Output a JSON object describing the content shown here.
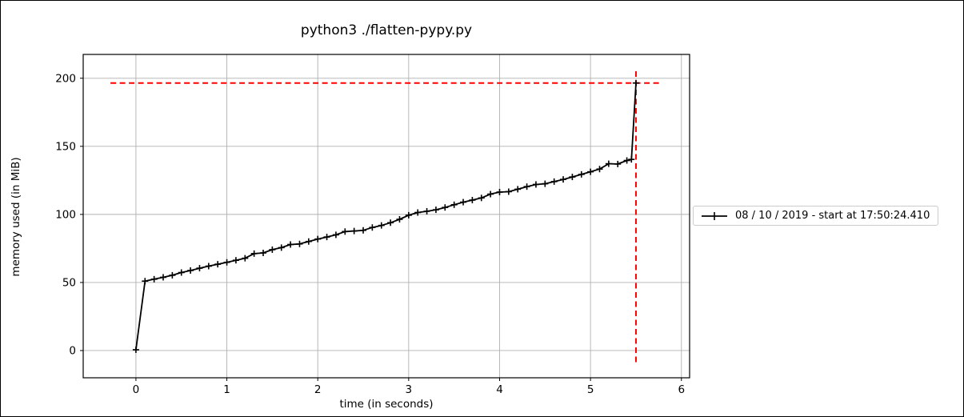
{
  "chart_data": {
    "type": "line",
    "title": "python3 ./flatten-pypy.py",
    "xlabel": "time (in seconds)",
    "ylabel": "memory used (in MiB)",
    "xlim": [
      -0.58,
      6.09
    ],
    "ylim": [
      -20,
      217.5
    ],
    "x_ticks": [
      0,
      1,
      2,
      3,
      4,
      5,
      6
    ],
    "y_ticks": [
      0,
      50,
      100,
      150,
      200
    ],
    "grid": true,
    "legend": {
      "label": "08 / 10 / 2019 - start at 17:50:24.410",
      "position": "right-of-axes"
    },
    "series": [
      {
        "name": "08 / 10 / 2019 - start at 17:50:24.410",
        "color": "#000000",
        "marker": "+",
        "x": [
          0,
          0.1,
          0.2,
          0.3,
          0.4,
          0.5,
          0.6,
          0.7,
          0.8,
          0.9,
          1.0,
          1.1,
          1.2,
          1.3,
          1.4,
          1.5,
          1.6,
          1.7,
          1.8,
          1.9,
          2.0,
          2.1,
          2.2,
          2.3,
          2.4,
          2.5,
          2.6,
          2.7,
          2.8,
          2.9,
          3.0,
          3.1,
          3.2,
          3.3,
          3.4,
          3.5,
          3.6,
          3.7,
          3.8,
          3.9,
          4.0,
          4.1,
          4.2,
          4.3,
          4.4,
          4.5,
          4.6,
          4.7,
          4.8,
          4.9,
          5.0,
          5.1,
          5.2,
          5.3,
          5.4,
          5.45,
          5.5
        ],
        "y": [
          0.6,
          51.0,
          52.4,
          53.8,
          55.3,
          57.3,
          58.8,
          60.5,
          62.0,
          63.4,
          64.8,
          66.3,
          67.8,
          71.2,
          71.7,
          74.1,
          75.6,
          77.9,
          78.3,
          80.1,
          81.9,
          83.4,
          85.0,
          87.4,
          87.8,
          88.3,
          90.4,
          91.9,
          93.9,
          96.4,
          99.4,
          101.4,
          102.3,
          103.4,
          105.1,
          107.1,
          109.0,
          110.5,
          112.1,
          114.9,
          116.4,
          116.7,
          118.5,
          120.4,
          122.0,
          122.5,
          124.1,
          125.7,
          127.5,
          129.4,
          131.3,
          133.3,
          137.2,
          137.0,
          139.6,
          140.4,
          196.5
        ]
      }
    ],
    "annotations": {
      "max_memory_hline": {
        "y": 196.5,
        "x0": -0.28,
        "x1": 5.77,
        "color": "#ff0000",
        "style": "dashed"
      },
      "end_time_vline": {
        "x": 5.5,
        "y0": -8.5,
        "y1": 207.0,
        "color": "#ff0000",
        "style": "dashed"
      }
    },
    "colors": {
      "line": "#000000",
      "grid": "#b0b0b0",
      "annotation": "#ff0000",
      "background": "#ffffff",
      "spine": "#000000",
      "legend_border": "#cccccc"
    }
  }
}
